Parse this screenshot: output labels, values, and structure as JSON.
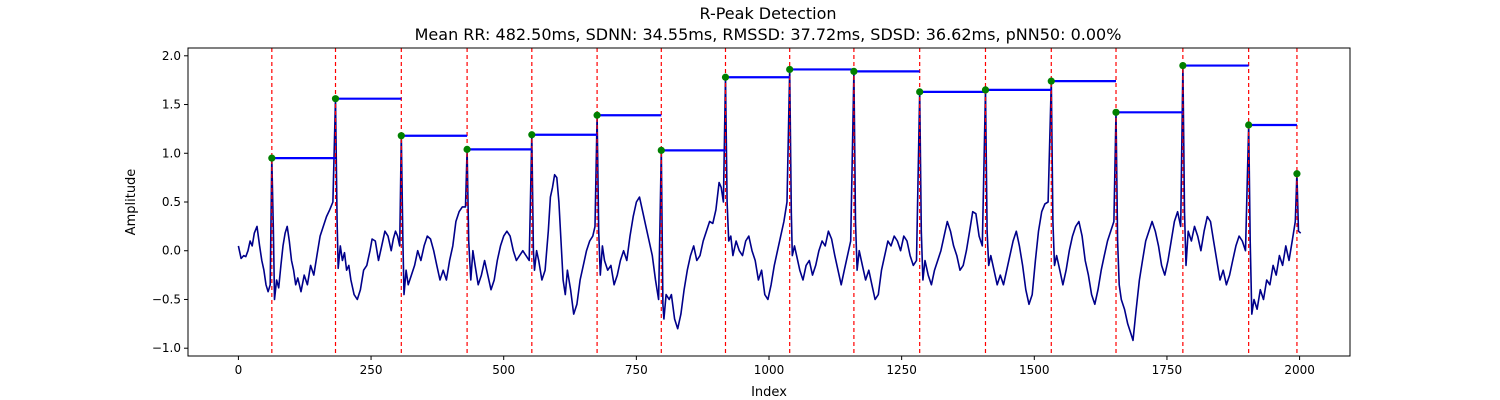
{
  "chart_data": {
    "type": "line",
    "title": "R-Peak Detection",
    "subtitle": "Mean RR: 482.50ms, SDNN: 34.55ms, RMSSD: 37.72ms, SDSD: 36.62ms, pNN50: 0.00%",
    "xlabel": "Index",
    "ylabel": "Amplitude",
    "xlim": [
      -95,
      2095
    ],
    "ylim": [
      -1.08,
      2.08
    ],
    "xticks": [
      0,
      250,
      500,
      750,
      1000,
      1250,
      1500,
      1750,
      2000
    ],
    "yticks": [
      -1.0,
      -0.5,
      0.0,
      0.5,
      1.0,
      1.5,
      2.0
    ],
    "grid": false,
    "colors": {
      "signal": "#00008b",
      "peak_marker": "#008000",
      "peak_line": "#ff0000",
      "rr_segment": "#0000ff"
    },
    "signal_points": [
      [
        0,
        0.05
      ],
      [
        5,
        -0.08
      ],
      [
        10,
        -0.05
      ],
      [
        14,
        -0.06
      ],
      [
        18,
        0.0
      ],
      [
        22,
        0.1
      ],
      [
        26,
        0.05
      ],
      [
        30,
        0.18
      ],
      [
        35,
        0.25
      ],
      [
        40,
        0.05
      ],
      [
        44,
        -0.1
      ],
      [
        48,
        -0.2
      ],
      [
        52,
        -0.35
      ],
      [
        56,
        -0.42
      ],
      [
        60,
        -0.35
      ],
      [
        63,
        0.95
      ],
      [
        66,
        0.2
      ],
      [
        68,
        -0.5
      ],
      [
        72,
        -0.3
      ],
      [
        76,
        -0.38
      ],
      [
        80,
        -0.15
      ],
      [
        84,
        0.05
      ],
      [
        88,
        0.18
      ],
      [
        92,
        0.25
      ],
      [
        96,
        0.1
      ],
      [
        100,
        -0.1
      ],
      [
        104,
        -0.2
      ],
      [
        108,
        -0.35
      ],
      [
        112,
        -0.28
      ],
      [
        118,
        -0.42
      ],
      [
        124,
        -0.25
      ],
      [
        130,
        -0.35
      ],
      [
        136,
        -0.15
      ],
      [
        142,
        -0.25
      ],
      [
        148,
        -0.05
      ],
      [
        154,
        0.15
      ],
      [
        160,
        0.25
      ],
      [
        166,
        0.35
      ],
      [
        172,
        0.42
      ],
      [
        178,
        0.5
      ],
      [
        183,
        1.56
      ],
      [
        186,
        0.3
      ],
      [
        188,
        -0.18
      ],
      [
        192,
        0.05
      ],
      [
        196,
        -0.1
      ],
      [
        200,
        -0.02
      ],
      [
        204,
        -0.2
      ],
      [
        208,
        -0.15
      ],
      [
        212,
        -0.3
      ],
      [
        218,
        -0.45
      ],
      [
        224,
        -0.5
      ],
      [
        230,
        -0.4
      ],
      [
        236,
        -0.2
      ],
      [
        242,
        -0.15
      ],
      [
        248,
        0.0
      ],
      [
        252,
        0.12
      ],
      [
        258,
        0.1
      ],
      [
        264,
        -0.1
      ],
      [
        270,
        0.05
      ],
      [
        276,
        0.2
      ],
      [
        282,
        0.15
      ],
      [
        288,
        0.0
      ],
      [
        292,
        0.12
      ],
      [
        296,
        0.2
      ],
      [
        300,
        0.15
      ],
      [
        304,
        0.05
      ],
      [
        307,
        1.18
      ],
      [
        310,
        0.1
      ],
      [
        312,
        -0.45
      ],
      [
        316,
        -0.2
      ],
      [
        320,
        -0.35
      ],
      [
        326,
        -0.25
      ],
      [
        332,
        -0.15
      ],
      [
        338,
        0.0
      ],
      [
        344,
        -0.1
      ],
      [
        350,
        0.05
      ],
      [
        356,
        0.15
      ],
      [
        362,
        0.12
      ],
      [
        368,
        0.0
      ],
      [
        374,
        -0.15
      ],
      [
        380,
        -0.3
      ],
      [
        386,
        -0.2
      ],
      [
        392,
        -0.3
      ],
      [
        398,
        -0.1
      ],
      [
        404,
        0.05
      ],
      [
        410,
        0.3
      ],
      [
        416,
        0.4
      ],
      [
        422,
        0.45
      ],
      [
        428,
        0.45
      ],
      [
        431,
        1.04
      ],
      [
        434,
        0.1
      ],
      [
        438,
        -0.3
      ],
      [
        442,
        0.0
      ],
      [
        446,
        -0.15
      ],
      [
        452,
        -0.35
      ],
      [
        458,
        -0.25
      ],
      [
        464,
        -0.1
      ],
      [
        470,
        -0.25
      ],
      [
        476,
        -0.4
      ],
      [
        482,
        -0.3
      ],
      [
        488,
        -0.1
      ],
      [
        494,
        0.05
      ],
      [
        500,
        0.15
      ],
      [
        506,
        0.2
      ],
      [
        512,
        0.15
      ],
      [
        518,
        0.0
      ],
      [
        524,
        -0.1
      ],
      [
        530,
        -0.05
      ],
      [
        536,
        0.0
      ],
      [
        542,
        -0.05
      ],
      [
        548,
        -0.1
      ],
      [
        553,
        1.19
      ],
      [
        556,
        0.0
      ],
      [
        558,
        -0.2
      ],
      [
        562,
        0.0
      ],
      [
        566,
        -0.1
      ],
      [
        572,
        -0.3
      ],
      [
        578,
        -0.2
      ],
      [
        584,
        0.2
      ],
      [
        588,
        0.55
      ],
      [
        592,
        0.65
      ],
      [
        596,
        0.78
      ],
      [
        600,
        0.75
      ],
      [
        604,
        0.5
      ],
      [
        608,
        0.1
      ],
      [
        612,
        -0.3
      ],
      [
        616,
        -0.45
      ],
      [
        620,
        -0.2
      ],
      [
        626,
        -0.4
      ],
      [
        632,
        -0.65
      ],
      [
        638,
        -0.55
      ],
      [
        644,
        -0.3
      ],
      [
        650,
        -0.15
      ],
      [
        656,
        0.0
      ],
      [
        662,
        0.1
      ],
      [
        668,
        0.15
      ],
      [
        672,
        0.25
      ],
      [
        676,
        1.39
      ],
      [
        679,
        0.2
      ],
      [
        682,
        -0.25
      ],
      [
        686,
        0.05
      ],
      [
        690,
        -0.1
      ],
      [
        696,
        -0.2
      ],
      [
        702,
        -0.15
      ],
      [
        708,
        -0.35
      ],
      [
        714,
        -0.25
      ],
      [
        720,
        -0.1
      ],
      [
        726,
        0.0
      ],
      [
        732,
        -0.1
      ],
      [
        738,
        0.15
      ],
      [
        744,
        0.35
      ],
      [
        750,
        0.5
      ],
      [
        756,
        0.55
      ],
      [
        762,
        0.4
      ],
      [
        768,
        0.25
      ],
      [
        774,
        0.1
      ],
      [
        780,
        -0.05
      ],
      [
        786,
        -0.3
      ],
      [
        792,
        -0.5
      ],
      [
        797,
        1.03
      ],
      [
        800,
        -0.55
      ],
      [
        802,
        -0.7
      ],
      [
        806,
        -0.45
      ],
      [
        812,
        -0.5
      ],
      [
        816,
        -0.45
      ],
      [
        822,
        -0.7
      ],
      [
        828,
        -0.8
      ],
      [
        834,
        -0.65
      ],
      [
        840,
        -0.4
      ],
      [
        846,
        -0.2
      ],
      [
        852,
        -0.05
      ],
      [
        858,
        0.05
      ],
      [
        864,
        -0.1
      ],
      [
        870,
        -0.05
      ],
      [
        876,
        0.1
      ],
      [
        882,
        0.2
      ],
      [
        888,
        0.3
      ],
      [
        894,
        0.28
      ],
      [
        900,
        0.42
      ],
      [
        906,
        0.7
      ],
      [
        910,
        0.65
      ],
      [
        914,
        0.5
      ],
      [
        918,
        1.78
      ],
      [
        921,
        0.5
      ],
      [
        924,
        0.1
      ],
      [
        928,
        0.15
      ],
      [
        932,
        -0.05
      ],
      [
        938,
        0.1
      ],
      [
        944,
        0.0
      ],
      [
        950,
        -0.05
      ],
      [
        956,
        0.1
      ],
      [
        962,
        0.15
      ],
      [
        968,
        0.0
      ],
      [
        974,
        -0.1
      ],
      [
        980,
        -0.3
      ],
      [
        986,
        -0.2
      ],
      [
        992,
        -0.45
      ],
      [
        998,
        -0.5
      ],
      [
        1004,
        -0.35
      ],
      [
        1010,
        -0.15
      ],
      [
        1016,
        0.0
      ],
      [
        1022,
        0.15
      ],
      [
        1028,
        0.3
      ],
      [
        1034,
        0.5
      ],
      [
        1039,
        1.86
      ],
      [
        1042,
        0.4
      ],
      [
        1044,
        -0.05
      ],
      [
        1048,
        0.05
      ],
      [
        1052,
        -0.05
      ],
      [
        1058,
        -0.2
      ],
      [
        1064,
        -0.3
      ],
      [
        1070,
        -0.15
      ],
      [
        1076,
        -0.1
      ],
      [
        1082,
        -0.25
      ],
      [
        1088,
        -0.15
      ],
      [
        1094,
        0.0
      ],
      [
        1100,
        0.1
      ],
      [
        1106,
        0.05
      ],
      [
        1112,
        0.2
      ],
      [
        1118,
        0.12
      ],
      [
        1124,
        -0.05
      ],
      [
        1130,
        -0.2
      ],
      [
        1136,
        -0.35
      ],
      [
        1142,
        -0.2
      ],
      [
        1148,
        -0.05
      ],
      [
        1154,
        0.1
      ],
      [
        1160,
        1.84
      ],
      [
        1163,
        0.3
      ],
      [
        1166,
        -0.2
      ],
      [
        1170,
        0.0
      ],
      [
        1176,
        -0.15
      ],
      [
        1182,
        -0.3
      ],
      [
        1188,
        -0.2
      ],
      [
        1194,
        -0.35
      ],
      [
        1200,
        -0.5
      ],
      [
        1206,
        -0.45
      ],
      [
        1212,
        -0.2
      ],
      [
        1218,
        -0.05
      ],
      [
        1224,
        0.1
      ],
      [
        1230,
        0.05
      ],
      [
        1236,
        0.15
      ],
      [
        1242,
        0.1
      ],
      [
        1248,
        0.0
      ],
      [
        1254,
        0.15
      ],
      [
        1260,
        0.1
      ],
      [
        1266,
        -0.05
      ],
      [
        1272,
        -0.15
      ],
      [
        1278,
        -0.1
      ],
      [
        1284,
        1.63
      ],
      [
        1287,
        0.2
      ],
      [
        1290,
        -0.3
      ],
      [
        1294,
        -0.1
      ],
      [
        1300,
        -0.25
      ],
      [
        1306,
        -0.35
      ],
      [
        1312,
        -0.2
      ],
      [
        1318,
        -0.1
      ],
      [
        1324,
        0.0
      ],
      [
        1330,
        0.15
      ],
      [
        1336,
        0.3
      ],
      [
        1342,
        0.2
      ],
      [
        1348,
        0.05
      ],
      [
        1354,
        -0.05
      ],
      [
        1360,
        -0.2
      ],
      [
        1366,
        -0.15
      ],
      [
        1372,
        0.0
      ],
      [
        1378,
        0.2
      ],
      [
        1384,
        0.4
      ],
      [
        1390,
        0.38
      ],
      [
        1396,
        0.15
      ],
      [
        1402,
        0.05
      ],
      [
        1408,
        1.65
      ],
      [
        1411,
        0.2
      ],
      [
        1414,
        -0.15
      ],
      [
        1418,
        -0.05
      ],
      [
        1424,
        -0.2
      ],
      [
        1430,
        -0.35
      ],
      [
        1436,
        -0.25
      ],
      [
        1442,
        -0.35
      ],
      [
        1448,
        -0.2
      ],
      [
        1454,
        -0.05
      ],
      [
        1460,
        0.1
      ],
      [
        1466,
        0.2
      ],
      [
        1472,
        0.05
      ],
      [
        1478,
        -0.15
      ],
      [
        1484,
        -0.4
      ],
      [
        1490,
        -0.55
      ],
      [
        1496,
        -0.45
      ],
      [
        1502,
        -0.1
      ],
      [
        1508,
        0.2
      ],
      [
        1514,
        0.4
      ],
      [
        1520,
        0.48
      ],
      [
        1526,
        0.5
      ],
      [
        1532,
        1.74
      ],
      [
        1535,
        0.3
      ],
      [
        1538,
        -0.15
      ],
      [
        1542,
        -0.05
      ],
      [
        1548,
        -0.2
      ],
      [
        1554,
        -0.35
      ],
      [
        1560,
        -0.2
      ],
      [
        1566,
        0.0
      ],
      [
        1572,
        0.15
      ],
      [
        1578,
        0.25
      ],
      [
        1584,
        0.3
      ],
      [
        1590,
        0.15
      ],
      [
        1596,
        -0.1
      ],
      [
        1602,
        -0.25
      ],
      [
        1608,
        -0.45
      ],
      [
        1614,
        -0.55
      ],
      [
        1620,
        -0.4
      ],
      [
        1626,
        -0.2
      ],
      [
        1632,
        -0.05
      ],
      [
        1638,
        0.1
      ],
      [
        1644,
        0.2
      ],
      [
        1650,
        0.3
      ],
      [
        1654,
        1.42
      ],
      [
        1657,
        0.1
      ],
      [
        1660,
        -0.35
      ],
      [
        1664,
        -0.5
      ],
      [
        1670,
        -0.6
      ],
      [
        1676,
        -0.75
      ],
      [
        1682,
        -0.85
      ],
      [
        1686,
        -0.92
      ],
      [
        1692,
        -0.6
      ],
      [
        1698,
        -0.3
      ],
      [
        1704,
        -0.1
      ],
      [
        1710,
        0.1
      ],
      [
        1716,
        0.2
      ],
      [
        1722,
        0.3
      ],
      [
        1728,
        0.2
      ],
      [
        1734,
        0.05
      ],
      [
        1740,
        -0.15
      ],
      [
        1746,
        -0.25
      ],
      [
        1752,
        -0.1
      ],
      [
        1758,
        0.1
      ],
      [
        1764,
        0.3
      ],
      [
        1770,
        0.4
      ],
      [
        1776,
        0.25
      ],
      [
        1780,
        1.9
      ],
      [
        1783,
        0.4
      ],
      [
        1786,
        -0.15
      ],
      [
        1790,
        0.2
      ],
      [
        1796,
        0.1
      ],
      [
        1802,
        0.25
      ],
      [
        1808,
        0.15
      ],
      [
        1814,
        0.0
      ],
      [
        1820,
        0.2
      ],
      [
        1826,
        0.35
      ],
      [
        1832,
        0.3
      ],
      [
        1838,
        0.1
      ],
      [
        1844,
        -0.1
      ],
      [
        1850,
        -0.3
      ],
      [
        1856,
        -0.2
      ],
      [
        1862,
        -0.35
      ],
      [
        1868,
        -0.25
      ],
      [
        1874,
        -0.1
      ],
      [
        1880,
        0.05
      ],
      [
        1886,
        0.15
      ],
      [
        1892,
        0.1
      ],
      [
        1898,
        0.0
      ],
      [
        1904,
        1.29
      ],
      [
        1907,
        0.1
      ],
      [
        1910,
        -0.65
      ],
      [
        1914,
        -0.5
      ],
      [
        1920,
        -0.6
      ],
      [
        1926,
        -0.4
      ],
      [
        1932,
        -0.5
      ],
      [
        1938,
        -0.3
      ],
      [
        1944,
        -0.35
      ],
      [
        1950,
        -0.15
      ],
      [
        1956,
        -0.25
      ],
      [
        1962,
        -0.05
      ],
      [
        1968,
        -0.15
      ],
      [
        1974,
        0.05
      ],
      [
        1980,
        -0.1
      ],
      [
        1986,
        0.1
      ],
      [
        1992,
        0.3
      ],
      [
        1995,
        0.79
      ],
      [
        1998,
        0.2
      ],
      [
        2002,
        0.18
      ]
    ],
    "r_peaks": [
      {
        "x": 63,
        "y": 0.95
      },
      {
        "x": 183,
        "y": 1.56
      },
      {
        "x": 307,
        "y": 1.18
      },
      {
        "x": 431,
        "y": 1.04
      },
      {
        "x": 553,
        "y": 1.19
      },
      {
        "x": 676,
        "y": 1.39
      },
      {
        "x": 797,
        "y": 1.03
      },
      {
        "x": 918,
        "y": 1.78
      },
      {
        "x": 1039,
        "y": 1.86
      },
      {
        "x": 1160,
        "y": 1.84
      },
      {
        "x": 1284,
        "y": 1.63
      },
      {
        "x": 1408,
        "y": 1.65
      },
      {
        "x": 1532,
        "y": 1.74
      },
      {
        "x": 1654,
        "y": 1.42
      },
      {
        "x": 1780,
        "y": 1.9
      },
      {
        "x": 1904,
        "y": 1.29
      },
      {
        "x": 1995,
        "y": 0.79
      }
    ]
  }
}
